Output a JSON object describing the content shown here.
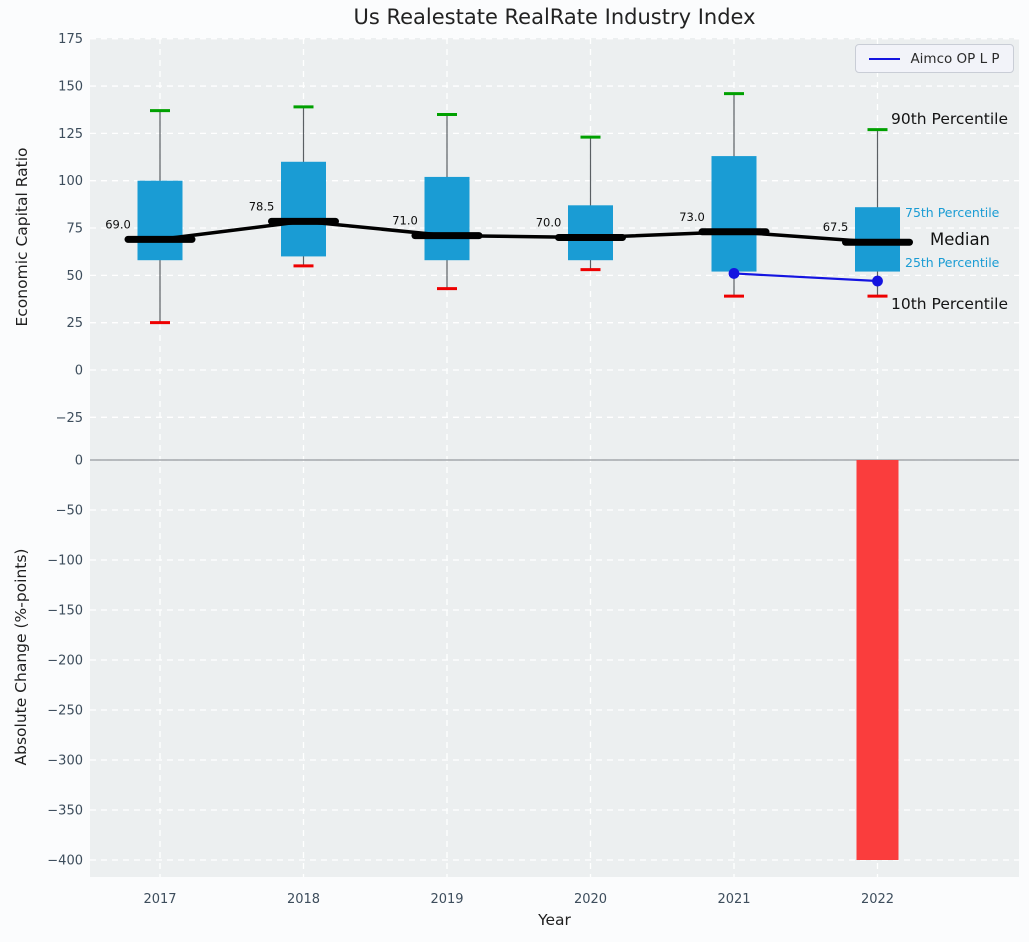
{
  "title": "Us Realestate RealRate Industry Index",
  "legend": {
    "label": "Aimco OP L P",
    "position": "top-right"
  },
  "annotations": {
    "p90": "90th Percentile",
    "p75": "75th Percentile",
    "median": "Median",
    "p25": "25th Percentile",
    "p10": "10th Percentile"
  },
  "colors": {
    "box": "#1a9cd4",
    "cap_top": "#00a000",
    "cap_bottom": "#ee0000",
    "whisker": "#5a5f63",
    "median": "#000000",
    "series_line": "#1414e0",
    "bar": "#fa3d3d",
    "plot_bg": "#eceff0",
    "figure_bg": "#fbfcfd",
    "grid": "#ffffff",
    "zero_line": "#a3a7ab",
    "tick_text": "#3d4d5c",
    "label_text": "#1f1f1f"
  },
  "chart_data": [
    {
      "type": "boxplot",
      "panel": "top",
      "title": "Us Realestate RealRate Industry Index",
      "ylabel": "Economic Capital Ratio",
      "categories": [
        "2017",
        "2018",
        "2019",
        "2020",
        "2021",
        "2022"
      ],
      "yticks": [
        175,
        150,
        125,
        100,
        75,
        50,
        25,
        0,
        -25
      ],
      "ylim": [
        -35,
        176
      ],
      "grid": true,
      "boxes": [
        {
          "year": "2017",
          "p10": 25,
          "p25": 58,
          "median": 69.0,
          "p75": 100,
          "p90": 137,
          "median_label": "69.0"
        },
        {
          "year": "2018",
          "p10": 55,
          "p25": 60,
          "median": 78.5,
          "p75": 110,
          "p90": 139,
          "median_label": "78.5"
        },
        {
          "year": "2019",
          "p10": 43,
          "p25": 58,
          "median": 71.0,
          "p75": 102,
          "p90": 135,
          "median_label": "71.0"
        },
        {
          "year": "2020",
          "p10": 53,
          "p25": 58,
          "median": 70.0,
          "p75": 87,
          "p90": 123,
          "median_label": "70.0"
        },
        {
          "year": "2021",
          "p10": 39,
          "p25": 52,
          "median": 73.0,
          "p75": 113,
          "p90": 146,
          "median_label": "73.0"
        },
        {
          "year": "2022",
          "p10": 39,
          "p25": 52,
          "median": 67.5,
          "p75": 86,
          "p90": 127,
          "median_label": "67.5"
        }
      ],
      "series": [
        {
          "name": "Aimco OP L P",
          "x": [
            "2021",
            "2022"
          ],
          "values": [
            51,
            47
          ]
        }
      ]
    },
    {
      "type": "bar",
      "panel": "bottom",
      "xlabel": "Year",
      "ylabel": "Absolute Change (%-points)",
      "categories": [
        "2017",
        "2018",
        "2019",
        "2020",
        "2021",
        "2022"
      ],
      "yticks": [
        0,
        -50,
        -100,
        -150,
        -200,
        -250,
        -300,
        -350,
        -400
      ],
      "ylim": [
        -420,
        23
      ],
      "grid": true,
      "values": [
        null,
        null,
        null,
        null,
        null,
        -400
      ]
    }
  ]
}
